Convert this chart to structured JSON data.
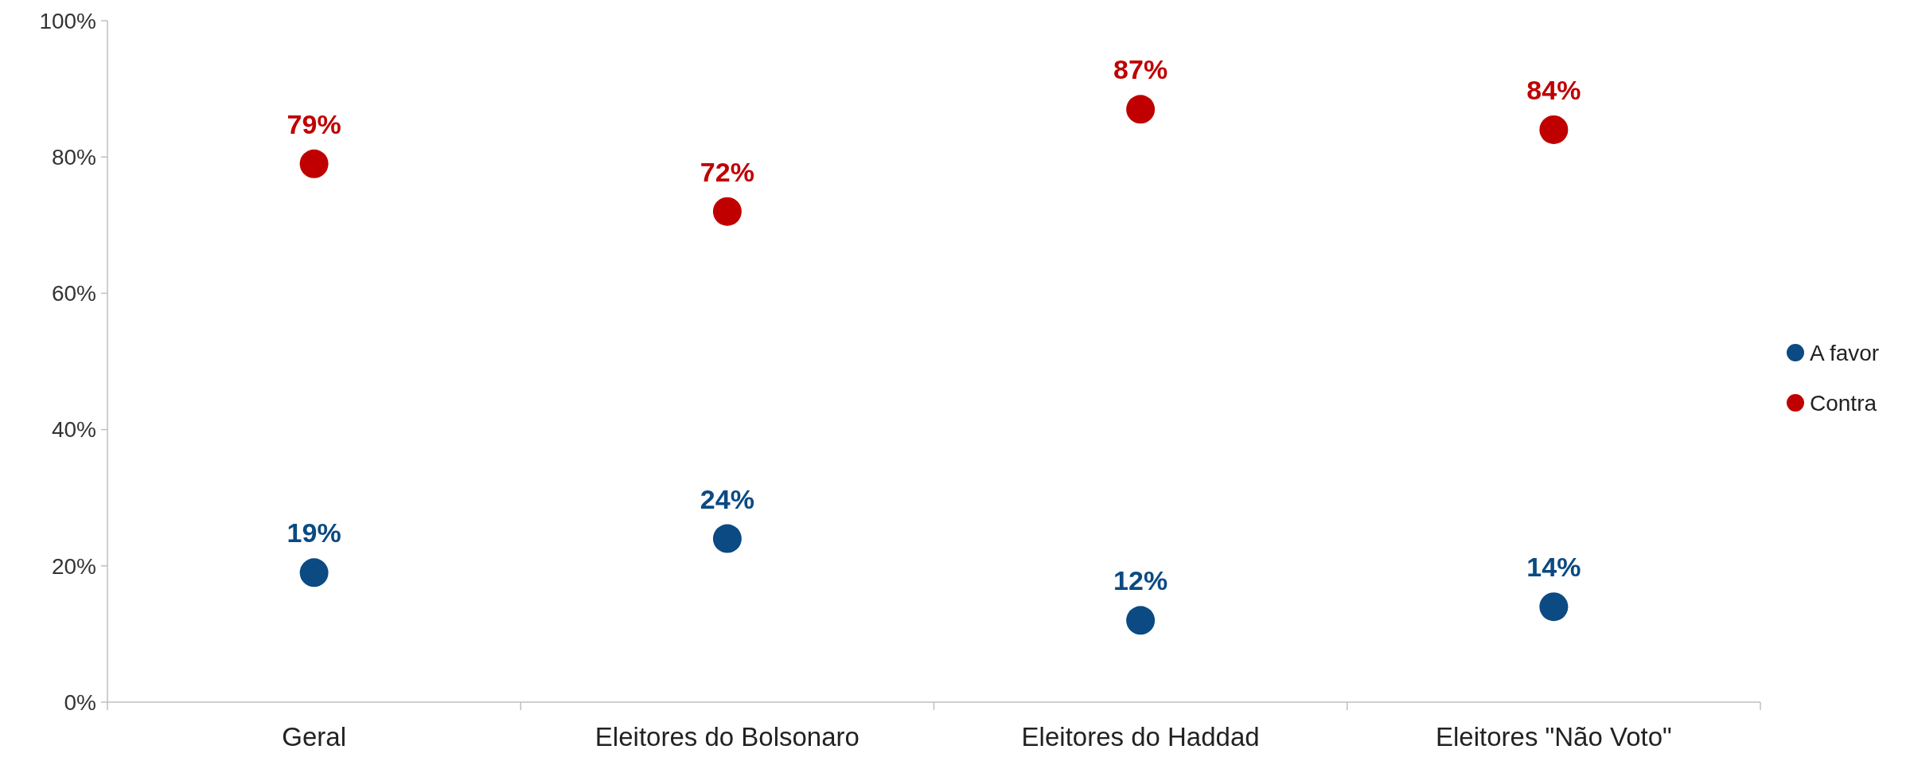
{
  "chart_data": {
    "type": "scatter",
    "categories": [
      "Geral",
      "Eleitores do Bolsonaro",
      "Eleitores do Haddad",
      "Eleitores \"Não Voto\""
    ],
    "series": [
      {
        "name": "A favor",
        "color": "#0b4a82",
        "values": [
          19,
          24,
          12,
          14
        ],
        "value_labels": [
          "19%",
          "24%",
          "12%",
          "14%"
        ]
      },
      {
        "name": "Contra",
        "color": "#c00000",
        "values": [
          79,
          72,
          87,
          84
        ],
        "value_labels": [
          "79%",
          "72%",
          "87%",
          "84%"
        ]
      }
    ],
    "ylim": [
      0,
      100
    ],
    "yticks": [
      {
        "value": 0,
        "label": "0%"
      },
      {
        "value": 20,
        "label": "20%"
      },
      {
        "value": 40,
        "label": "40%"
      },
      {
        "value": 60,
        "label": "60%"
      },
      {
        "value": 80,
        "label": "80%"
      },
      {
        "value": 100,
        "label": "100%"
      }
    ],
    "legend": "right",
    "marker": "circle",
    "grid": false
  }
}
